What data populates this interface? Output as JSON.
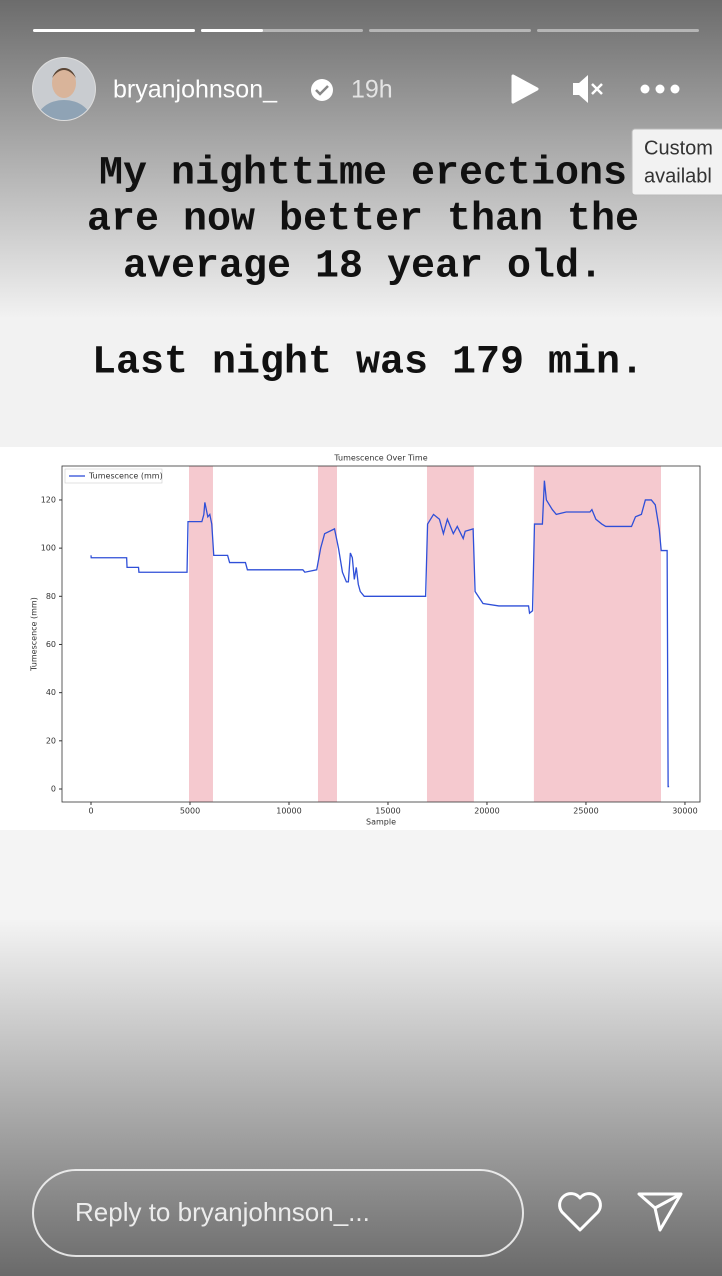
{
  "header": {
    "username": "bryanjohnson_",
    "time": "19h"
  },
  "tooltip": {
    "lines": [
      "Custom",
      "availabl"
    ]
  },
  "story_text": [
    "My nighttime erections",
    "are now better than the",
    "average 18 year old.",
    "Last night was 179 min."
  ],
  "chart_data": {
    "type": "line",
    "title": "Tumescence Over Time",
    "x_label": "Sample",
    "y_label": "Tumescence (mm)",
    "series": [
      {
        "name": "Tumescence (mm)",
        "color": "#2f4fd8"
      }
    ],
    "x": [
      0,
      10,
      1800,
      1820,
      2400,
      2420,
      4850,
      4900,
      5600,
      5700,
      5750,
      5900,
      6000,
      6100,
      6200,
      6900,
      7000,
      7800,
      7900,
      10700,
      10800,
      11400,
      11600,
      11800,
      12300,
      12500,
      12700,
      12900,
      13000,
      13100,
      13200,
      13300,
      13400,
      13500,
      13600,
      13800,
      16900,
      17000,
      17300,
      17600,
      17800,
      18000,
      18300,
      18500,
      18800,
      18900,
      19300,
      19400,
      19800,
      20600,
      22100,
      22150,
      22300,
      22400,
      22800,
      22900,
      23000,
      23300,
      23500,
      24000,
      25200,
      25300,
      25500,
      25800,
      26000,
      27300,
      27500,
      27800,
      28000,
      28300,
      28500,
      28700,
      28800,
      29100,
      29150,
      29200
    ],
    "values": [
      97,
      96,
      96,
      92,
      92,
      90,
      90,
      111,
      111,
      114,
      119,
      113,
      114,
      110,
      97,
      97,
      94,
      94,
      91,
      91,
      90,
      91,
      100,
      106,
      108,
      100,
      90,
      86,
      86,
      98,
      96,
      87,
      92,
      85,
      82,
      80,
      80,
      110,
      114,
      112,
      106,
      112,
      106,
      109,
      104,
      107,
      108,
      82,
      77,
      76,
      76,
      73,
      74,
      110,
      110,
      128,
      120,
      116,
      114,
      115,
      115,
      116,
      112,
      110,
      109,
      109,
      113,
      114,
      120,
      120,
      118,
      108,
      99,
      99,
      1,
      1
    ],
    "spans": [
      [
        4950,
        6160
      ],
      [
        11465,
        12425
      ],
      [
        16970,
        19340
      ],
      [
        22370,
        28790
      ]
    ],
    "span_color": "#f5c9cf",
    "xlim": [
      -1465,
      30760
    ],
    "ylim": [
      -5.4,
      134.1
    ],
    "xticks": [
      0,
      5000,
      10000,
      15000,
      20000,
      25000,
      30000
    ],
    "yticks": [
      0,
      20,
      40,
      60,
      80,
      100,
      120
    ],
    "grid": false,
    "legend": "upper left"
  },
  "reply": {
    "placeholder": "Reply to bryanjohnson_..."
  }
}
